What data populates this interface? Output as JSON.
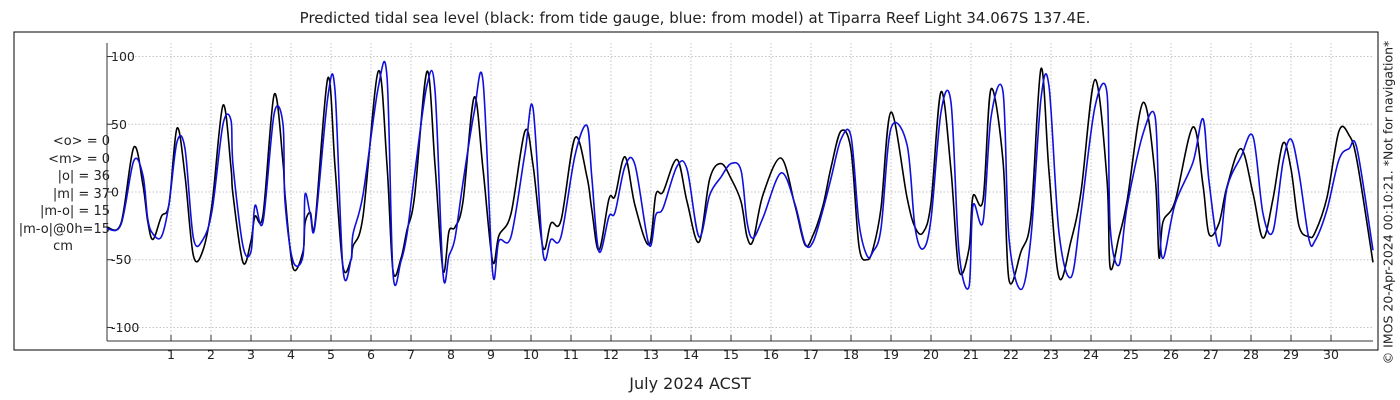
{
  "chart_data": {
    "type": "line",
    "title": "Predicted tidal sea level (black: from tide gauge, blue: from model) at Tiparra Reef Light 34.067S 137.4E.",
    "xlabel": "July 2024 ACST",
    "ylabel": "",
    "xlim": [
      -0.6,
      31.05
    ],
    "ylim": [
      -110,
      110
    ],
    "yticks": [
      -100,
      -50,
      0,
      50,
      100
    ],
    "xticks": [
      1,
      2,
      3,
      4,
      5,
      6,
      7,
      8,
      9,
      10,
      11,
      12,
      13,
      14,
      15,
      16,
      17,
      18,
      19,
      20,
      21,
      22,
      23,
      24,
      25,
      26,
      27,
      28,
      29,
      30
    ],
    "grid": true,
    "stats": {
      "mean_obs": "<o> = 0",
      "mean_model": "<m> = 0",
      "abs_obs": "|o| = 36",
      "abs_model": "|m| = 37",
      "abs_diff": "|m-o| = 15",
      "abs_diff_0h": "|m-o|@0h=15",
      "unit": "cm"
    },
    "series": [
      {
        "name": "tide gauge",
        "color": "#000000",
        "points": [
          [
            -0.6,
            -26
          ],
          [
            -0.25,
            -23
          ],
          [
            0.07,
            33
          ],
          [
            0.3,
            5
          ],
          [
            0.42,
            -22
          ],
          [
            0.55,
            -35
          ],
          [
            0.76,
            -18
          ],
          [
            0.95,
            -9
          ],
          [
            1.15,
            47
          ],
          [
            1.35,
            12
          ],
          [
            1.56,
            -47
          ],
          [
            1.8,
            -43
          ],
          [
            2.03,
            -8
          ],
          [
            2.3,
            64
          ],
          [
            2.5,
            18
          ],
          [
            2.55,
            -2
          ],
          [
            2.8,
            -52
          ],
          [
            3.0,
            -36
          ],
          [
            3.1,
            -18
          ],
          [
            3.3,
            -17
          ],
          [
            3.58,
            72
          ],
          [
            3.8,
            22
          ],
          [
            3.85,
            -2
          ],
          [
            4.05,
            -56
          ],
          [
            4.3,
            -44
          ],
          [
            4.35,
            -23
          ],
          [
            4.48,
            -15
          ],
          [
            4.6,
            -23
          ],
          [
            4.92,
            84
          ],
          [
            5.1,
            19
          ],
          [
            5.3,
            -55
          ],
          [
            5.5,
            -50
          ],
          [
            5.55,
            -40
          ],
          [
            5.8,
            -18
          ],
          [
            6.18,
            89
          ],
          [
            6.4,
            20
          ],
          [
            6.55,
            -58
          ],
          [
            6.75,
            -49
          ],
          [
            6.9,
            -28
          ],
          [
            7.09,
            -3
          ],
          [
            7.4,
            89
          ],
          [
            7.6,
            20
          ],
          [
            7.8,
            -58
          ],
          [
            7.95,
            -29
          ],
          [
            8.1,
            -26
          ],
          [
            8.3,
            -7
          ],
          [
            8.58,
            70
          ],
          [
            8.8,
            17
          ],
          [
            9.04,
            -51
          ],
          [
            9.2,
            -32
          ],
          [
            9.5,
            -16
          ],
          [
            9.85,
            45
          ],
          [
            10.05,
            20
          ],
          [
            10.3,
            -41
          ],
          [
            10.5,
            -23
          ],
          [
            10.75,
            -21
          ],
          [
            11.1,
            40
          ],
          [
            11.4,
            11
          ],
          [
            11.52,
            -13
          ],
          [
            11.7,
            -43
          ],
          [
            11.95,
            -5
          ],
          [
            12.1,
            -3
          ],
          [
            12.35,
            26
          ],
          [
            12.6,
            -10
          ],
          [
            12.95,
            -39
          ],
          [
            13.12,
            -2
          ],
          [
            13.3,
            0
          ],
          [
            13.65,
            24
          ],
          [
            13.9,
            -7
          ],
          [
            14.2,
            -37
          ],
          [
            14.47,
            10
          ],
          [
            14.75,
            21
          ],
          [
            15.0,
            10
          ],
          [
            15.25,
            -7
          ],
          [
            15.4,
            -33
          ],
          [
            15.55,
            -36
          ],
          [
            15.8,
            -2
          ],
          [
            16.25,
            25
          ],
          [
            16.6,
            -10
          ],
          [
            16.85,
            -39
          ],
          [
            17.05,
            -32
          ],
          [
            17.3,
            -10
          ],
          [
            17.5,
            18
          ],
          [
            17.75,
            45
          ],
          [
            18.0,
            31
          ],
          [
            18.2,
            -40
          ],
          [
            18.4,
            -50
          ],
          [
            18.55,
            -42
          ],
          [
            18.75,
            -12
          ],
          [
            19.0,
            59
          ],
          [
            19.4,
            -4
          ],
          [
            19.6,
            -26
          ],
          [
            19.8,
            -30
          ],
          [
            20.0,
            -8
          ],
          [
            20.25,
            74
          ],
          [
            20.5,
            16
          ],
          [
            20.7,
            -58
          ],
          [
            20.95,
            -42
          ],
          [
            21.05,
            -3
          ],
          [
            21.3,
            -6
          ],
          [
            21.5,
            76
          ],
          [
            21.8,
            23
          ],
          [
            21.95,
            -65
          ],
          [
            22.25,
            -44
          ],
          [
            22.5,
            -18
          ],
          [
            22.75,
            91
          ],
          [
            22.95,
            15
          ],
          [
            23.2,
            -63
          ],
          [
            23.5,
            -36
          ],
          [
            23.75,
            0
          ],
          [
            24.1,
            83
          ],
          [
            24.4,
            9
          ],
          [
            24.48,
            -56
          ],
          [
            24.7,
            -33
          ],
          [
            24.9,
            -7
          ],
          [
            25.3,
            66
          ],
          [
            25.6,
            13
          ],
          [
            25.7,
            -48
          ],
          [
            25.8,
            -22
          ],
          [
            26.1,
            -7
          ],
          [
            26.55,
            48
          ],
          [
            26.8,
            5
          ],
          [
            26.95,
            -31
          ],
          [
            27.2,
            -23
          ],
          [
            27.4,
            4
          ],
          [
            27.75,
            32
          ],
          [
            28.05,
            -1
          ],
          [
            28.3,
            -34
          ],
          [
            28.55,
            -5
          ],
          [
            28.8,
            36
          ],
          [
            29.0,
            17
          ],
          [
            29.2,
            -25
          ],
          [
            29.45,
            -33
          ],
          [
            29.6,
            -30
          ],
          [
            29.9,
            -4
          ],
          [
            30.2,
            45
          ],
          [
            30.45,
            42
          ],
          [
            30.65,
            23
          ],
          [
            31.05,
            -52
          ]
        ]
      },
      {
        "name": "model",
        "color": "#1010dd",
        "points": [
          [
            -0.6,
            -27
          ],
          [
            -0.25,
            -24
          ],
          [
            0.07,
            23
          ],
          [
            0.3,
            12
          ],
          [
            0.42,
            -20
          ],
          [
            0.55,
            -31
          ],
          [
            0.76,
            -33
          ],
          [
            0.95,
            -9
          ],
          [
            1.15,
            37
          ],
          [
            1.35,
            32
          ],
          [
            1.56,
            -34
          ],
          [
            1.8,
            -35
          ],
          [
            2.03,
            -13
          ],
          [
            2.3,
            50
          ],
          [
            2.5,
            53
          ],
          [
            2.55,
            20
          ],
          [
            2.8,
            -40
          ],
          [
            3.0,
            -44
          ],
          [
            3.1,
            -10
          ],
          [
            3.3,
            -22
          ],
          [
            3.58,
            58
          ],
          [
            3.8,
            50
          ],
          [
            3.85,
            -7
          ],
          [
            4.05,
            -51
          ],
          [
            4.3,
            -47
          ],
          [
            4.35,
            -2
          ],
          [
            4.48,
            -16
          ],
          [
            4.6,
            -25
          ],
          [
            4.92,
            70
          ],
          [
            5.1,
            75
          ],
          [
            5.3,
            -57
          ],
          [
            5.5,
            -50
          ],
          [
            5.55,
            -31
          ],
          [
            5.8,
            -2
          ],
          [
            6.18,
            77
          ],
          [
            6.4,
            85
          ],
          [
            6.55,
            -60
          ],
          [
            6.75,
            -51
          ],
          [
            6.9,
            -31
          ],
          [
            7.09,
            13
          ],
          [
            7.4,
            79
          ],
          [
            7.6,
            75
          ],
          [
            7.8,
            -60
          ],
          [
            7.95,
            -47
          ],
          [
            8.1,
            -34
          ],
          [
            8.3,
            7
          ],
          [
            8.58,
            59
          ],
          [
            8.8,
            82
          ],
          [
            9.04,
            -59
          ],
          [
            9.2,
            -36
          ],
          [
            9.5,
            -33
          ],
          [
            9.85,
            29
          ],
          [
            10.05,
            62
          ],
          [
            10.3,
            -45
          ],
          [
            10.5,
            -35
          ],
          [
            10.75,
            -33
          ],
          [
            11.1,
            27
          ],
          [
            11.4,
            49
          ],
          [
            11.52,
            11
          ],
          [
            11.7,
            -44
          ],
          [
            11.95,
            -18
          ],
          [
            12.1,
            -15
          ],
          [
            12.35,
            19
          ],
          [
            12.6,
            20
          ],
          [
            12.95,
            -39
          ],
          [
            13.12,
            -17
          ],
          [
            13.3,
            -12
          ],
          [
            13.65,
            19
          ],
          [
            13.9,
            17
          ],
          [
            14.2,
            -33
          ],
          [
            14.47,
            -2
          ],
          [
            14.75,
            11
          ],
          [
            15.0,
            21
          ],
          [
            15.25,
            16
          ],
          [
            15.4,
            -22
          ],
          [
            15.55,
            -34
          ],
          [
            15.8,
            -19
          ],
          [
            16.25,
            14
          ],
          [
            16.6,
            -9
          ],
          [
            16.85,
            -38
          ],
          [
            17.05,
            -37
          ],
          [
            17.3,
            -13
          ],
          [
            17.5,
            10
          ],
          [
            17.75,
            39
          ],
          [
            18.0,
            41
          ],
          [
            18.2,
            -23
          ],
          [
            18.4,
            -47
          ],
          [
            18.55,
            -44
          ],
          [
            18.75,
            -27
          ],
          [
            19.0,
            47
          ],
          [
            19.4,
            35
          ],
          [
            19.6,
            -26
          ],
          [
            19.8,
            -42
          ],
          [
            20.0,
            -20
          ],
          [
            20.25,
            59
          ],
          [
            20.5,
            66
          ],
          [
            20.7,
            -44
          ],
          [
            20.95,
            -70
          ],
          [
            21.05,
            -10
          ],
          [
            21.3,
            -22
          ],
          [
            21.5,
            55
          ],
          [
            21.8,
            74
          ],
          [
            21.95,
            -34
          ],
          [
            22.25,
            -72
          ],
          [
            22.5,
            -33
          ],
          [
            22.75,
            69
          ],
          [
            22.95,
            78
          ],
          [
            23.2,
            -30
          ],
          [
            23.5,
            -63
          ],
          [
            23.75,
            -15
          ],
          [
            24.1,
            63
          ],
          [
            24.4,
            73
          ],
          [
            24.48,
            -26
          ],
          [
            24.7,
            -54
          ],
          [
            24.9,
            -11
          ],
          [
            25.3,
            43
          ],
          [
            25.6,
            56
          ],
          [
            25.7,
            -13
          ],
          [
            25.8,
            -49
          ],
          [
            26.1,
            -9
          ],
          [
            26.55,
            22
          ],
          [
            26.8,
            54
          ],
          [
            26.95,
            8
          ],
          [
            27.2,
            -40
          ],
          [
            27.4,
            3
          ],
          [
            27.75,
            26
          ],
          [
            28.05,
            41
          ],
          [
            28.3,
            -16
          ],
          [
            28.55,
            -29
          ],
          [
            28.8,
            22
          ],
          [
            29.0,
            39
          ],
          [
            29.2,
            14
          ],
          [
            29.45,
            -35
          ],
          [
            29.6,
            -36
          ],
          [
            29.9,
            -13
          ],
          [
            30.2,
            24
          ],
          [
            30.45,
            32
          ],
          [
            30.65,
            32
          ],
          [
            31.05,
            -43
          ]
        ]
      }
    ]
  },
  "watermark": "© IMOS 20-Apr-2024 00:10:21. *Not for navigation*"
}
